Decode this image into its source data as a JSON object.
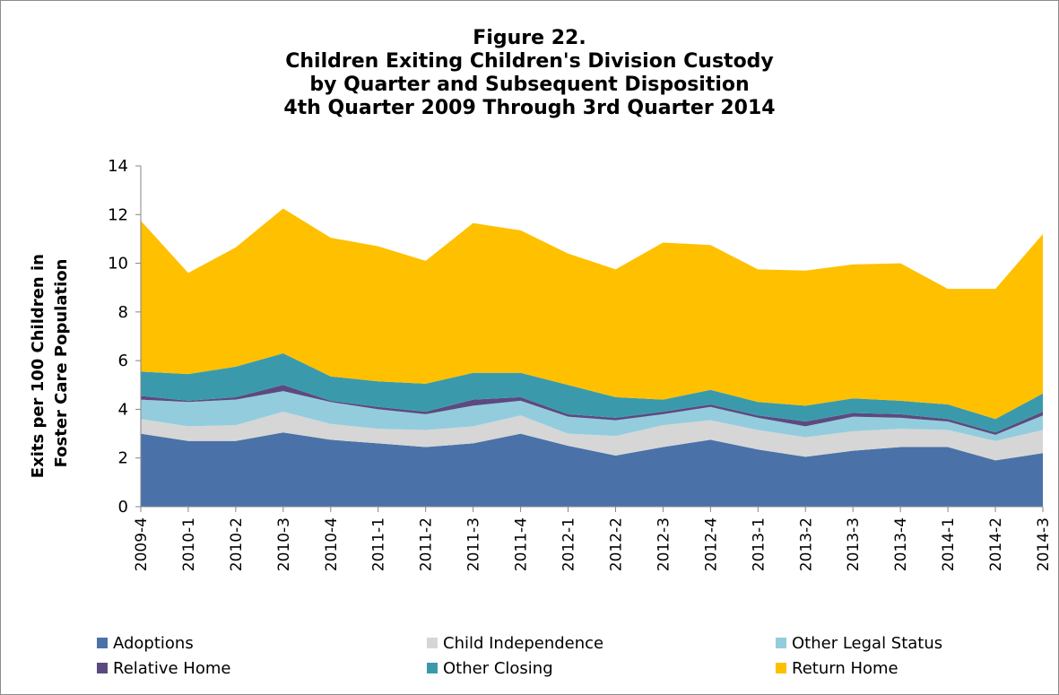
{
  "chart_data": {
    "type": "area",
    "stacked": true,
    "title_lines": [
      "Figure 22.",
      "Children Exiting Children's Division Custody",
      "by Quarter and Subsequent Disposition",
      "4th Quarter 2009 Through 3rd Quarter 2014"
    ],
    "ylabel_lines": [
      "Exits per 100 Children in",
      "Foster Care Population"
    ],
    "xlabel": "",
    "ylim": [
      0,
      14
    ],
    "yticks": [
      "0",
      "2",
      "4",
      "6",
      "8",
      "10",
      "12",
      "14"
    ],
    "grid": false,
    "legend_position": "bottom",
    "categories": [
      "2009-4",
      "2010-1",
      "2010-2",
      "2010-3",
      "2010-4",
      "2011-1",
      "2011-2",
      "2011-3",
      "2011-4",
      "2012-1",
      "2012-2",
      "2012-3",
      "2012-4",
      "2013-1",
      "2013-2",
      "2013-3",
      "2013-4",
      "2014-1",
      "2014-2",
      "2014-3"
    ],
    "series": [
      {
        "name": "Adoptions",
        "color": "#4a72a8",
        "values": [
          3.0,
          2.7,
          2.7,
          3.05,
          2.75,
          2.6,
          2.45,
          2.6,
          3.0,
          2.5,
          2.1,
          2.45,
          2.75,
          2.35,
          2.05,
          2.3,
          2.45,
          2.45,
          1.9,
          2.2
        ]
      },
      {
        "name": "Child Independence",
        "color": "#d6d6d6",
        "values": [
          0.6,
          0.6,
          0.65,
          0.85,
          0.65,
          0.6,
          0.7,
          0.7,
          0.75,
          0.5,
          0.8,
          0.9,
          0.8,
          0.8,
          0.8,
          0.8,
          0.75,
          0.7,
          0.8,
          0.95
        ]
      },
      {
        "name": "Other Legal Status",
        "color": "#93cddd",
        "values": [
          0.8,
          1.0,
          1.05,
          0.85,
          0.9,
          0.8,
          0.65,
          0.85,
          0.6,
          0.7,
          0.65,
          0.45,
          0.55,
          0.5,
          0.45,
          0.6,
          0.45,
          0.35,
          0.25,
          0.6
        ]
      },
      {
        "name": "Relative Home",
        "color": "#5c4a7e",
        "values": [
          0.15,
          0.05,
          0.1,
          0.25,
          0.05,
          0.1,
          0.1,
          0.25,
          0.15,
          0.1,
          0.1,
          0.1,
          0.1,
          0.1,
          0.2,
          0.15,
          0.15,
          0.1,
          0.1,
          0.15
        ]
      },
      {
        "name": "Other Closing",
        "color": "#3a9aac",
        "values": [
          1.0,
          1.1,
          1.25,
          1.3,
          1.0,
          1.05,
          1.15,
          1.1,
          1.0,
          1.2,
          0.85,
          0.5,
          0.6,
          0.55,
          0.65,
          0.6,
          0.55,
          0.6,
          0.55,
          0.75
        ]
      },
      {
        "name": "Return Home",
        "color": "#ffc000",
        "values": [
          6.2,
          4.15,
          4.9,
          5.95,
          5.7,
          5.55,
          5.05,
          6.15,
          5.85,
          5.4,
          5.25,
          6.45,
          5.95,
          5.45,
          5.55,
          5.5,
          5.65,
          4.75,
          5.35,
          6.55
        ]
      }
    ]
  }
}
